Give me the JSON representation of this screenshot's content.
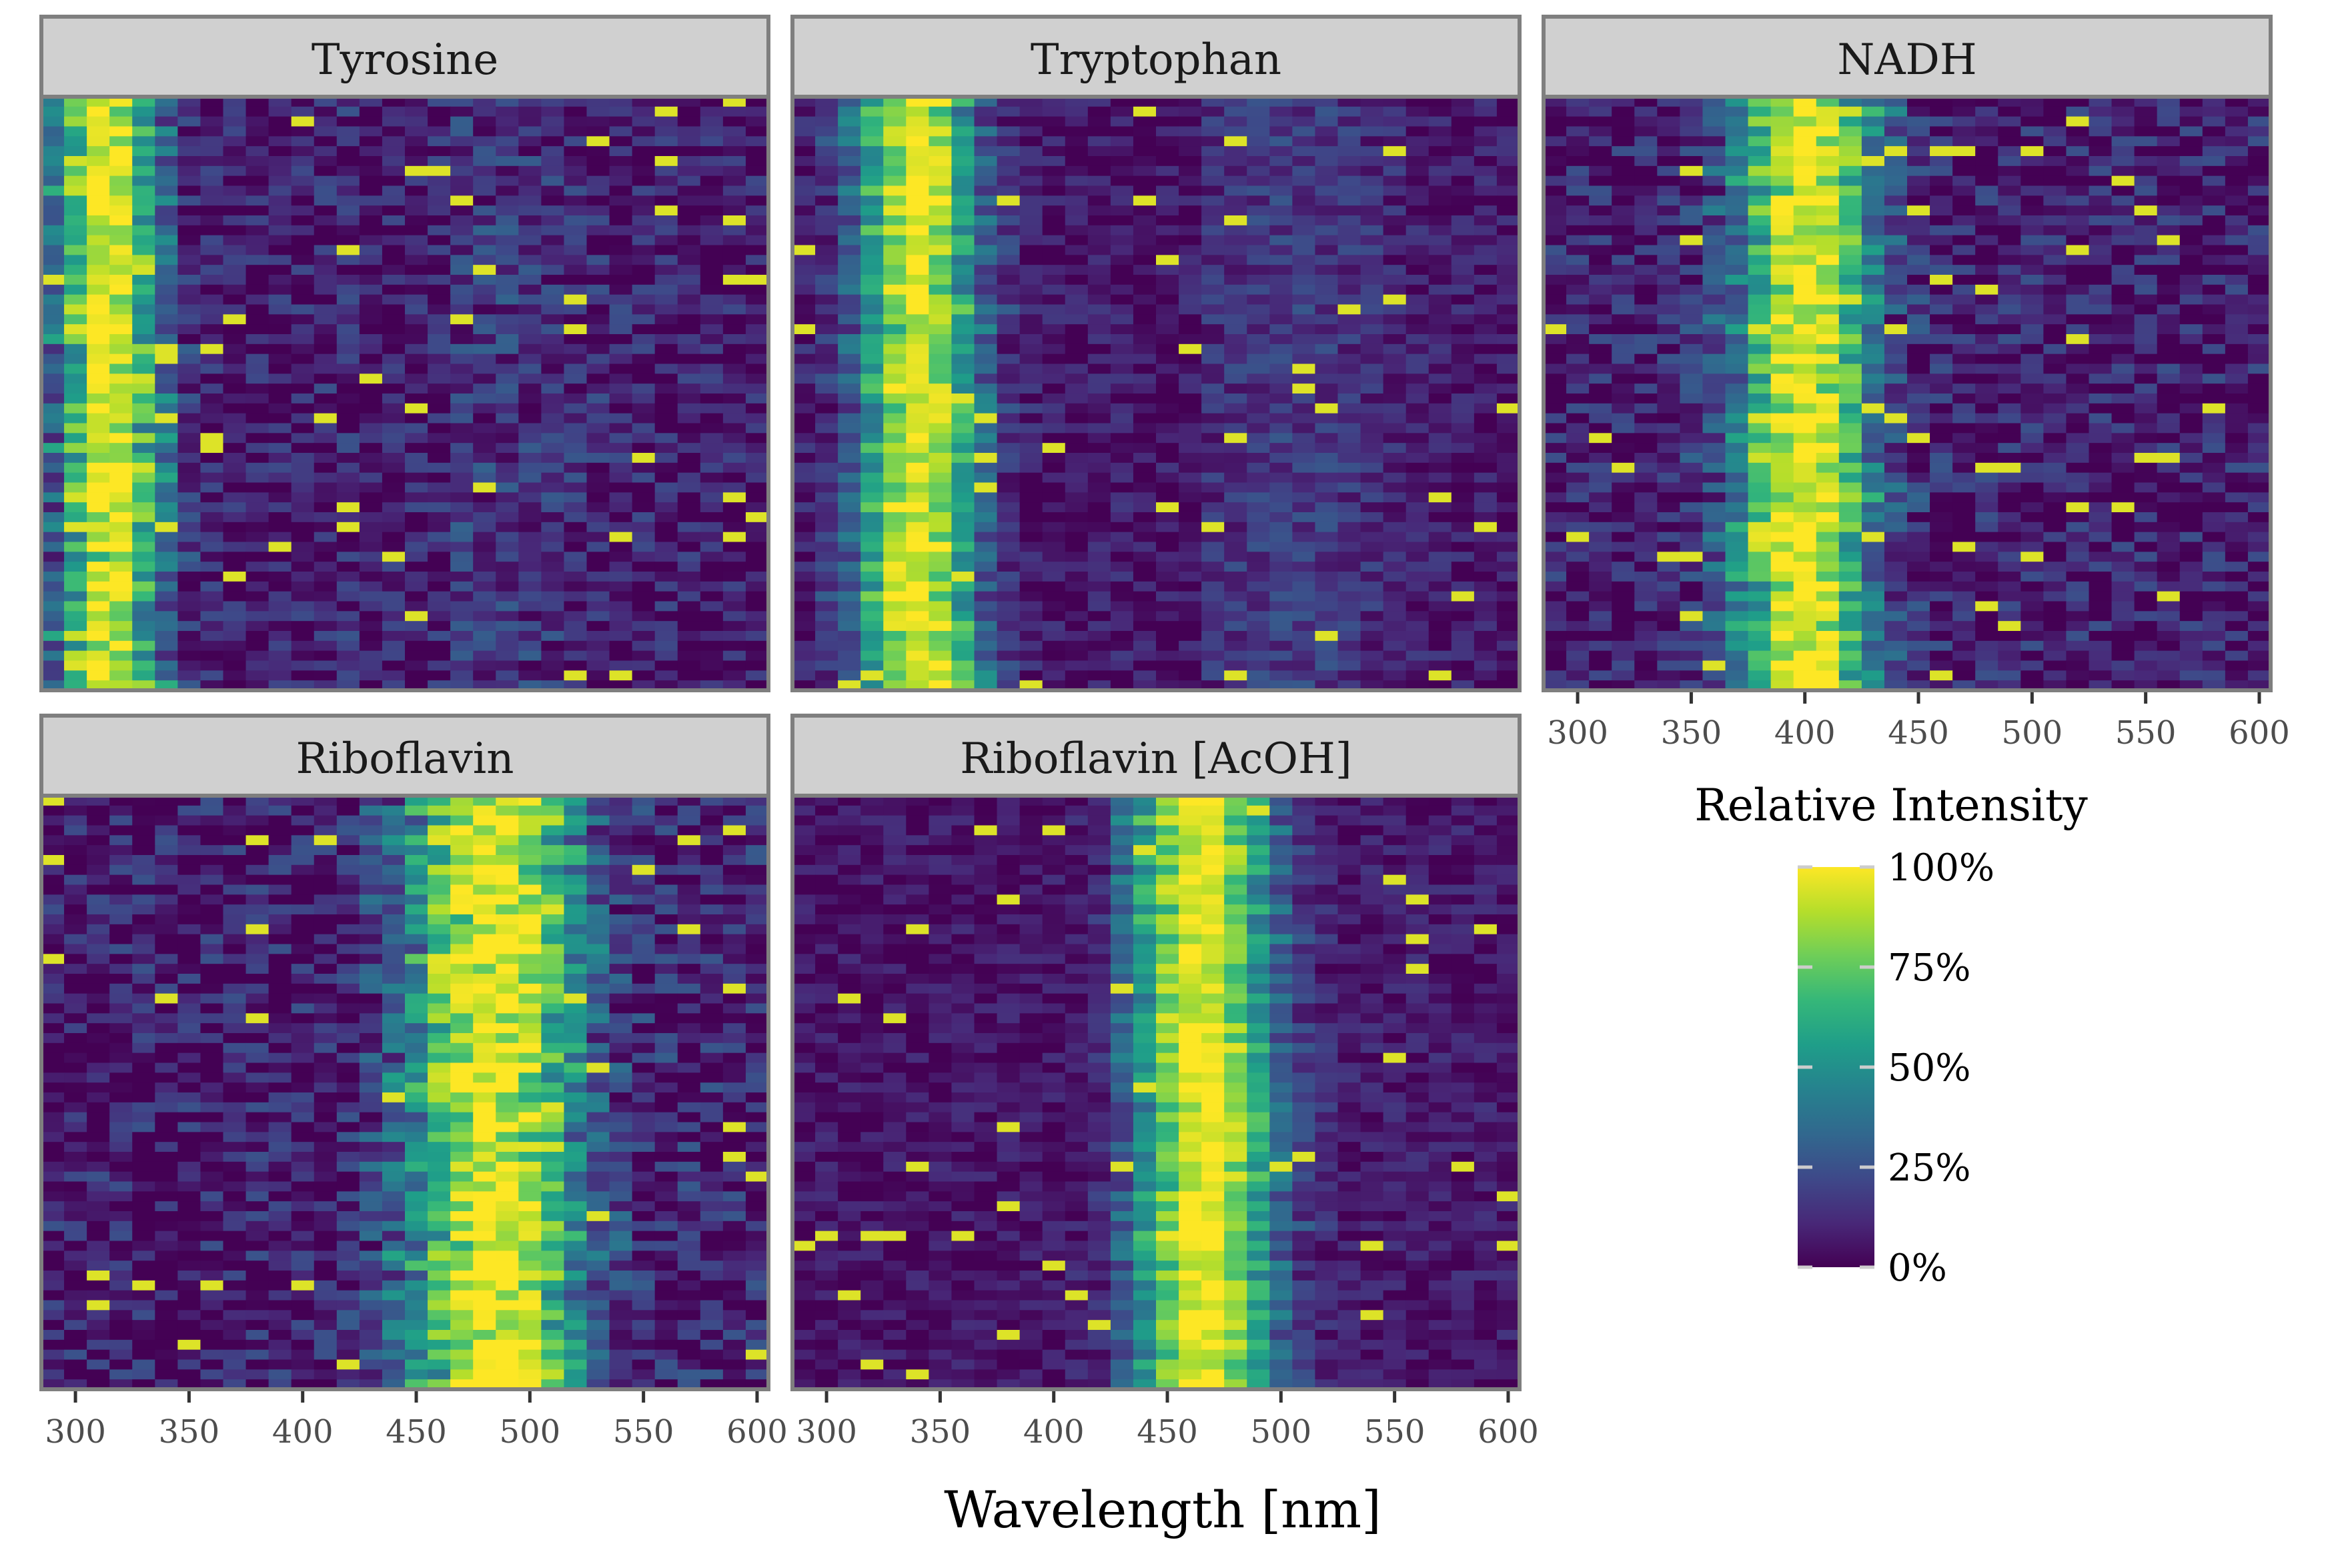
{
  "chart_data": {
    "type": "heatmap",
    "xlabel": "Wavelength [nm]",
    "x_ticks": [
      300,
      350,
      400,
      450,
      500,
      550,
      600
    ],
    "xlim": [
      285,
      605
    ],
    "bin_width_nm": 10,
    "n_rows": 60,
    "panels": [
      {
        "name": "Tyrosine",
        "peak_center": 315,
        "peak_width": 22,
        "baseline": 0.06,
        "noise": 0.32,
        "secondary": [
          {
            "center": 475,
            "width": 60,
            "height": 0.1
          }
        ],
        "dark_bands": [
          435,
          455
        ]
      },
      {
        "name": "Tryptophan",
        "peak_center": 340,
        "peak_width": 26,
        "baseline": 0.05,
        "noise": 0.22,
        "secondary": [
          {
            "center": 505,
            "width": 55,
            "height": 0.12
          }
        ],
        "dark_bands": [
          445,
          455
        ]
      },
      {
        "name": "NADH",
        "peak_center": 400,
        "peak_width": 30,
        "baseline": 0.08,
        "noise": 0.35,
        "secondary": [],
        "dark_bands": []
      },
      {
        "name": "Riboflavin",
        "peak_center": 485,
        "peak_width": 38,
        "baseline": 0.08,
        "noise": 0.4,
        "secondary": [],
        "dark_bands": [],
        "step_edge": 425
      },
      {
        "name": "Riboflavin [AcOH]",
        "peak_center": 465,
        "peak_width": 30,
        "baseline": 0.07,
        "noise": 0.18,
        "secondary": [],
        "dark_bands": [],
        "step_edge": 425
      }
    ],
    "legend": {
      "title": "Relative Intensity",
      "labels": [
        "100%",
        "75%",
        "50%",
        "25%",
        "0%"
      ],
      "values": [
        1.0,
        0.75,
        0.5,
        0.25,
        0.0
      ],
      "colormap": "viridis",
      "colors": [
        "#440154",
        "#482878",
        "#3e4989",
        "#31688e",
        "#26828e",
        "#1f9e89",
        "#35b779",
        "#6ece58",
        "#b5de2b",
        "#fde725"
      ]
    }
  },
  "colors": {
    "strip_bg": "#d0d0d0",
    "panel_border": "#7f7f7f"
  }
}
